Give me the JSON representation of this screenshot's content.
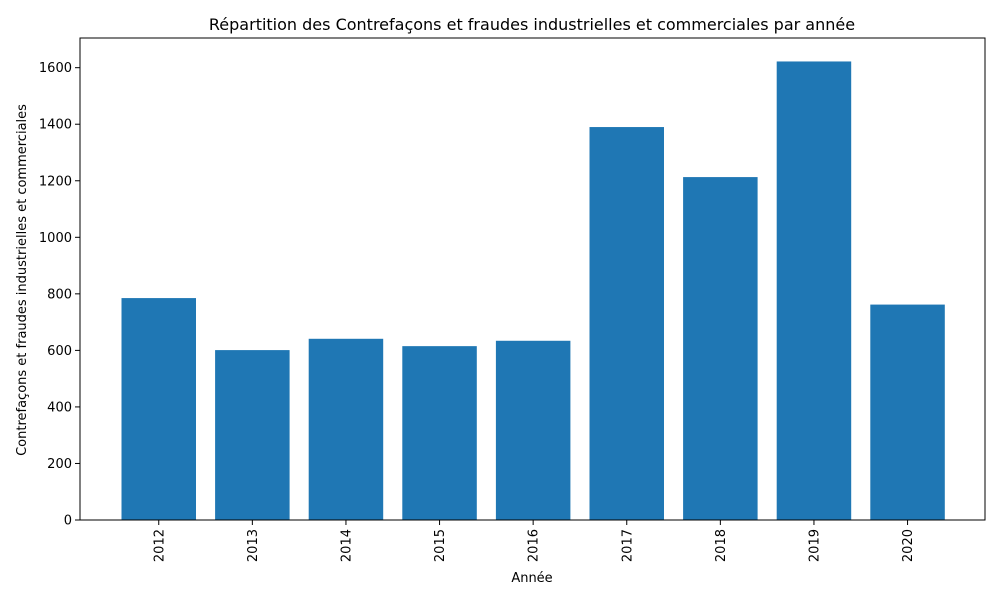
{
  "chart_data": {
    "type": "bar",
    "title": "Répartition des Contrefaçons et fraudes industrielles et commerciales par année",
    "xlabel": "Année",
    "ylabel": "Contrefaçons et fraudes industrielles et commerciales",
    "categories": [
      "2012",
      "2013",
      "2014",
      "2015",
      "2016",
      "2017",
      "2018",
      "2019",
      "2020"
    ],
    "values": [
      785,
      601,
      641,
      615,
      634,
      1390,
      1213,
      1622,
      762
    ],
    "ylim": [
      0,
      1705
    ],
    "yticks": [
      "0",
      "200",
      "400",
      "600",
      "800",
      "1000",
      "1200",
      "1400",
      "1600"
    ],
    "bar_color": "#1f77b4",
    "grid": false,
    "legend": "none"
  }
}
